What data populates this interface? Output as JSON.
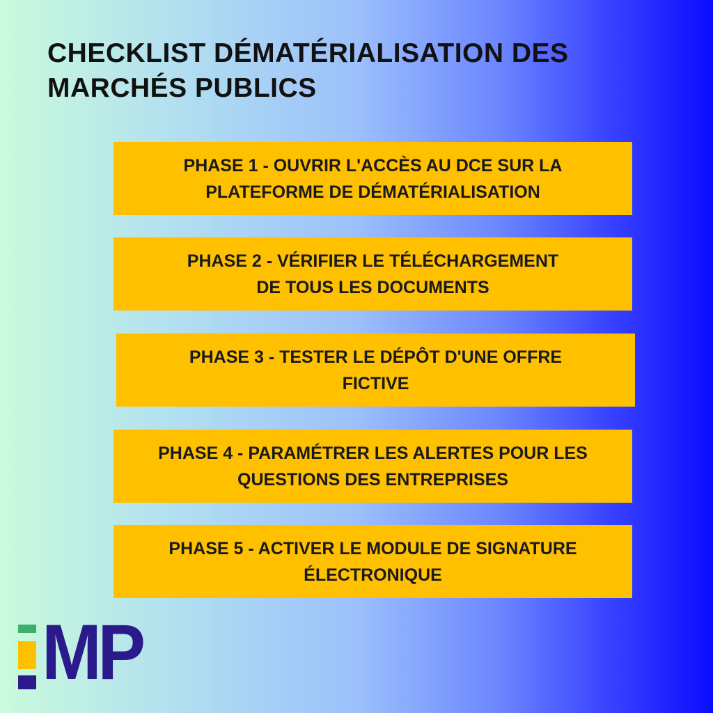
{
  "title": "CHECKLIST DÉMATÉRIALISATION DES\nMARCHÉS PUBLICS",
  "phases": [
    {
      "label": "PHASE 1 - OUVRIR L'ACCÈS AU DCE SUR LA\nPLATEFORME DE DÉMATÉRIALISATION"
    },
    {
      "label": "PHASE 2 - VÉRIFIER LE TÉLÉCHARGEMENT\nDE TOUS LES DOCUMENTS"
    },
    {
      "label": "PHASE 3 - TESTER LE DÉPÔT D'UNE OFFRE\nFICTIVE"
    },
    {
      "label": "PHASE 4 - PARAMÉTRER LES ALERTES POUR LES\nQUESTIONS DES ENTREPRISES"
    },
    {
      "label": "PHASE 5 - ACTIVER LE MODULE DE SIGNATURE\nÉLECTRONIQUE"
    }
  ],
  "logo": {
    "text": "MP",
    "colors": {
      "green": "#3fae6a",
      "yellow": "#ffc000",
      "navy": "#2a1a8c"
    }
  },
  "colors": {
    "box": "#ffc000",
    "gradient_start": "#c9fbdc",
    "gradient_end": "#0a0cff"
  }
}
